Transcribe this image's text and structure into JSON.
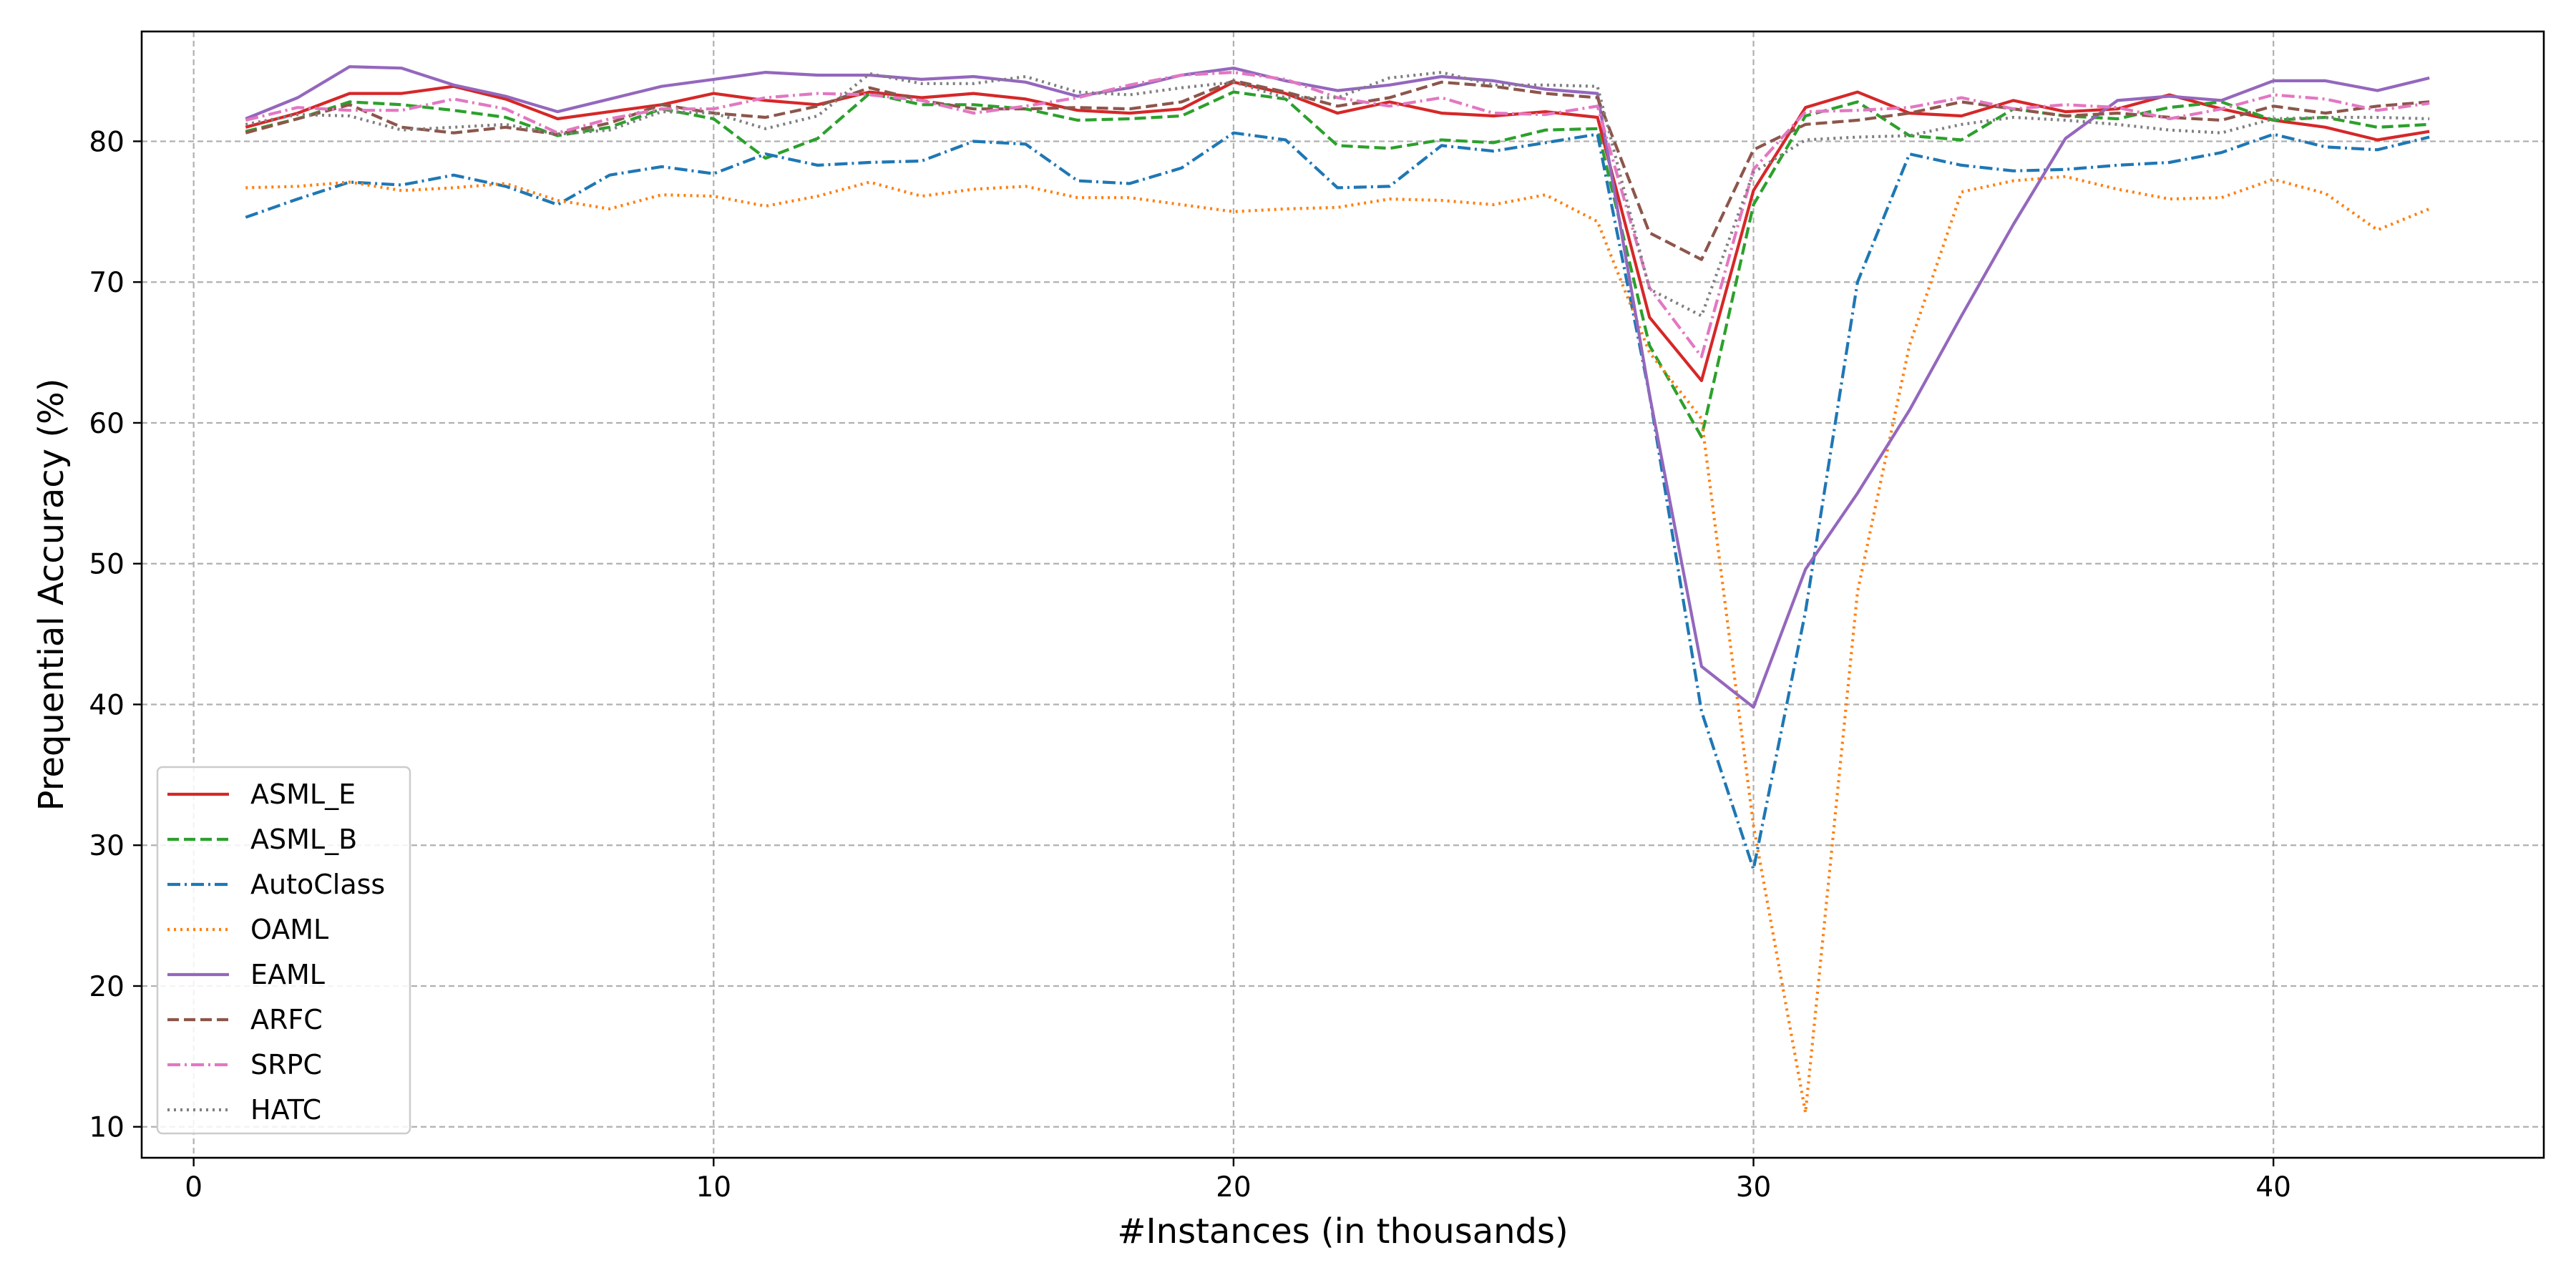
{
  "chart_data": {
    "type": "line",
    "title": "",
    "xlabel": "#Instances (in thousands)",
    "ylabel": "Prequential Accuracy (%)",
    "xlim": [
      -1,
      45.2
    ],
    "ylim": [
      7.8,
      87.8
    ],
    "xticks": [
      0,
      10,
      20,
      30,
      40
    ],
    "yticks": [
      10,
      20,
      30,
      40,
      50,
      60,
      70,
      80
    ],
    "grid": true,
    "legend_position": "lower-left",
    "x": [
      1,
      2,
      3,
      4,
      5,
      6,
      7,
      8,
      9,
      10,
      11,
      12,
      13,
      14,
      15,
      16,
      17,
      18,
      19,
      20,
      21,
      22,
      23,
      24,
      25,
      26,
      27,
      28,
      29,
      30,
      31,
      32,
      33,
      34,
      35,
      36,
      37,
      38,
      39,
      40,
      41,
      42,
      43
    ],
    "series": [
      {
        "name": "ASML_E",
        "color": "#d62728",
        "style": "solid",
        "values": [
          81.0,
          82.0,
          83.4,
          83.4,
          83.9,
          83.0,
          81.6,
          82.1,
          82.6,
          83.4,
          82.9,
          82.6,
          83.5,
          83.1,
          83.4,
          83.0,
          82.2,
          82.0,
          82.3,
          84.2,
          83.4,
          82.0,
          82.8,
          82.0,
          81.8,
          82.1,
          81.7,
          67.5,
          63.0,
          76.5,
          82.4,
          83.5,
          82.0,
          81.8,
          82.9,
          82.1,
          82.3,
          83.3,
          82.3,
          81.5,
          81.0,
          80.1,
          80.7
        ]
      },
      {
        "name": "ASML_B",
        "color": "#2ca02c",
        "style": "dashed",
        "values": [
          80.7,
          81.6,
          82.8,
          82.6,
          82.2,
          81.7,
          80.4,
          81.0,
          82.3,
          81.6,
          78.8,
          80.2,
          83.4,
          82.6,
          82.6,
          82.3,
          81.5,
          81.6,
          81.8,
          83.5,
          83.0,
          79.7,
          79.5,
          80.1,
          79.9,
          80.8,
          80.9,
          65.5,
          59.0,
          75.5,
          81.8,
          82.8,
          80.4,
          80.1,
          82.3,
          81.8,
          81.6,
          82.4,
          82.8,
          81.5,
          81.7,
          81.0,
          81.2
        ]
      },
      {
        "name": "AutoClass",
        "color": "#1f77b4",
        "style": "dashdot",
        "values": [
          74.6,
          75.9,
          77.1,
          76.9,
          77.6,
          76.8,
          75.5,
          77.6,
          78.2,
          77.7,
          79.1,
          78.3,
          78.5,
          78.6,
          80.0,
          79.8,
          77.2,
          77.0,
          78.1,
          80.6,
          80.1,
          76.7,
          76.8,
          79.7,
          79.3,
          79.9,
          80.5,
          62.0,
          39.5,
          28.3,
          46.6,
          70.0,
          79.1,
          78.3,
          77.9,
          78.0,
          78.3,
          78.5,
          79.2,
          80.5,
          79.6,
          79.4,
          80.3
        ]
      },
      {
        "name": "OAML",
        "color": "#ff7f0e",
        "style": "dotted",
        "values": [
          76.7,
          76.8,
          77.1,
          76.5,
          76.7,
          77.0,
          75.8,
          75.2,
          76.2,
          76.1,
          75.4,
          76.1,
          77.1,
          76.1,
          76.6,
          76.8,
          76.0,
          76.0,
          75.5,
          75.0,
          75.2,
          75.3,
          75.9,
          75.8,
          75.5,
          76.2,
          74.3,
          65.0,
          60.3,
          31.4,
          11.0,
          48.0,
          65.5,
          76.4,
          77.2,
          77.5,
          76.6,
          75.9,
          76.0,
          77.3,
          76.3,
          73.7,
          75.2
        ]
      },
      {
        "name": "EAML",
        "color": "#9467bd",
        "style": "solid",
        "values": [
          81.6,
          83.1,
          85.3,
          85.2,
          84.0,
          83.2,
          82.1,
          83.0,
          83.9,
          84.4,
          84.9,
          84.7,
          84.7,
          84.4,
          84.6,
          84.2,
          83.2,
          83.8,
          84.7,
          85.2,
          84.3,
          83.6,
          84.0,
          84.6,
          84.3,
          83.7,
          83.4,
          62.0,
          42.7,
          39.8,
          49.6,
          55.0,
          60.9,
          67.6,
          74.1,
          80.2,
          82.9,
          83.2,
          82.9,
          84.3,
          84.3,
          83.6,
          84.5
        ]
      },
      {
        "name": "ARFC",
        "color": "#8c564b",
        "style": "dashed",
        "values": [
          80.6,
          81.6,
          82.6,
          81.0,
          80.6,
          81.0,
          80.5,
          81.3,
          82.6,
          82.0,
          81.7,
          82.5,
          83.8,
          82.9,
          82.3,
          82.3,
          82.4,
          82.3,
          82.8,
          84.3,
          83.5,
          82.5,
          83.1,
          84.2,
          83.9,
          83.4,
          83.1,
          73.5,
          71.6,
          79.4,
          81.2,
          81.5,
          82.0,
          82.8,
          82.3,
          81.8,
          82.0,
          81.7,
          81.5,
          82.5,
          82.0,
          82.5,
          82.8
        ]
      },
      {
        "name": "SRPC",
        "color": "#e377c2",
        "style": "dashdot",
        "values": [
          81.5,
          82.4,
          82.2,
          82.2,
          83.0,
          82.3,
          80.6,
          81.6,
          82.3,
          82.3,
          83.1,
          83.4,
          83.3,
          82.9,
          82.0,
          82.5,
          83.1,
          84.0,
          84.7,
          84.9,
          84.4,
          83.1,
          82.5,
          83.1,
          82.0,
          81.9,
          82.5,
          69.6,
          64.7,
          78.0,
          82.1,
          82.2,
          82.4,
          83.1,
          82.3,
          82.6,
          82.4,
          81.6,
          82.3,
          83.3,
          83.0,
          82.2,
          82.7
        ]
      },
      {
        "name": "HATC",
        "color": "#7f7f7f",
        "style": "dotted",
        "values": [
          81.2,
          81.9,
          81.8,
          80.8,
          81.0,
          81.2,
          80.5,
          80.8,
          82.1,
          82.0,
          80.9,
          81.8,
          84.8,
          84.1,
          84.1,
          84.6,
          83.5,
          83.3,
          83.8,
          84.2,
          83.1,
          83.1,
          84.5,
          84.9,
          84.0,
          84.0,
          83.9,
          69.5,
          67.6,
          77.8,
          80.1,
          80.3,
          80.4,
          81.2,
          81.7,
          81.5,
          81.2,
          80.8,
          80.6,
          81.6,
          81.7,
          81.7,
          81.6
        ]
      }
    ]
  }
}
